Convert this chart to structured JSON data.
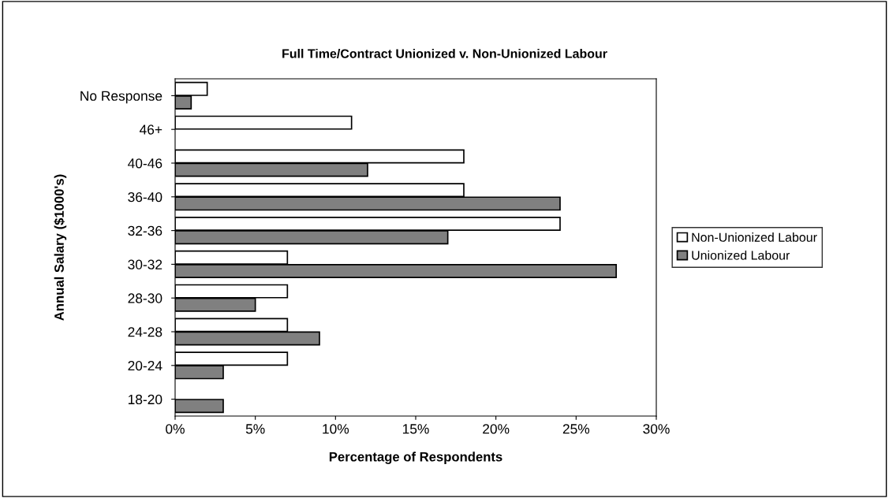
{
  "chart_data": {
    "type": "bar",
    "orientation": "horizontal",
    "title": "Full Time/Contract Unionized v. Non-Unionized Labour",
    "xlabel": "Percentage of Respondents",
    "ylabel": "Annual Salary ($1000's)",
    "categories": [
      "No Response",
      "46+",
      "40-46",
      "36-40",
      "32-36",
      "30-32",
      "28-30",
      "24-28",
      "20-24",
      "18-20"
    ],
    "series": [
      {
        "name": "Non-Unionized Labour",
        "color": "#ffffff",
        "values": [
          2,
          11,
          18,
          18,
          24,
          7,
          7,
          7,
          7,
          null
        ]
      },
      {
        "name": "Unionized Labour",
        "color": "#808080",
        "values": [
          1,
          null,
          12,
          24,
          17,
          27.5,
          5,
          9,
          3,
          3
        ]
      }
    ],
    "xlim": [
      0,
      30
    ],
    "xticks": [
      {
        "value": 0,
        "label": "0%"
      },
      {
        "value": 5,
        "label": "5%"
      },
      {
        "value": 10,
        "label": "10%"
      },
      {
        "value": 15,
        "label": "15%"
      },
      {
        "value": 20,
        "label": "20%"
      },
      {
        "value": 25,
        "label": "25%"
      },
      {
        "value": 30,
        "label": "30%"
      }
    ],
    "grid": false,
    "legend": "right"
  }
}
